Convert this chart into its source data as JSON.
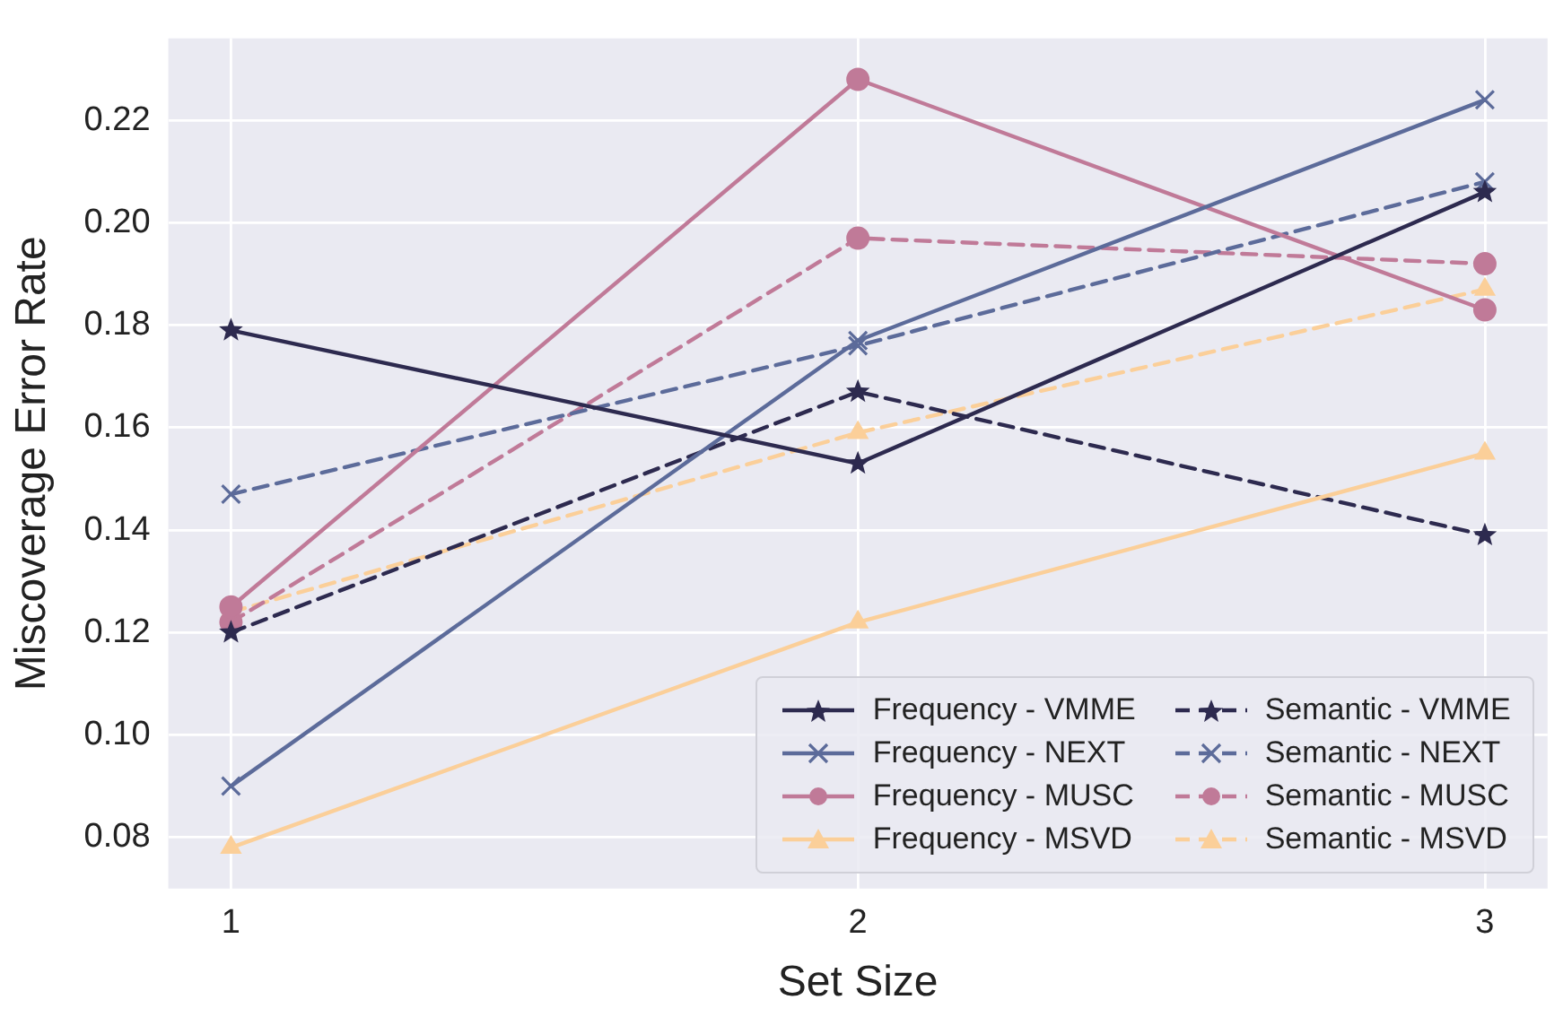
{
  "chart_data": {
    "type": "line",
    "xlabel": "Set Size",
    "ylabel": "Miscoverage Error Rate",
    "x": [
      1,
      2,
      3
    ],
    "xlim": [
      0.9,
      3.1
    ],
    "xticks": [
      1,
      2,
      3
    ],
    "ylim": [
      0.07,
      0.236
    ],
    "yticks": [
      {
        "value": 0.08,
        "label": "0.08"
      },
      {
        "value": 0.1,
        "label": "0.10"
      },
      {
        "value": 0.12,
        "label": "0.12"
      },
      {
        "value": 0.14,
        "label": "0.14"
      },
      {
        "value": 0.16,
        "label": "0.16"
      },
      {
        "value": 0.18,
        "label": "0.18"
      },
      {
        "value": 0.2,
        "label": "0.20"
      },
      {
        "value": 0.22,
        "label": "0.22"
      }
    ],
    "grid": true,
    "legend": "bottom right",
    "series": [
      {
        "name": "Frequency - VMME",
        "color": "#2d2a4f",
        "marker": "star",
        "line_style": "solid",
        "values": [
          0.179,
          0.153,
          0.206
        ]
      },
      {
        "name": "Frequency - NEXT",
        "color": "#5c6b9a",
        "marker": "cross",
        "line_style": "solid",
        "values": [
          0.09,
          0.177,
          0.224
        ]
      },
      {
        "name": "Frequency - MUSC",
        "color": "#c07a98",
        "marker": "circle",
        "line_style": "solid",
        "values": [
          0.125,
          0.228,
          0.183
        ]
      },
      {
        "name": "Frequency - MSVD",
        "color": "#fbcf99",
        "marker": "triangle",
        "line_style": "solid",
        "values": [
          0.078,
          0.122,
          0.155
        ]
      },
      {
        "name": "Semantic - VMME",
        "color": "#2d2a4f",
        "marker": "star",
        "line_style": "dashed",
        "values": [
          0.12,
          0.167,
          0.139
        ]
      },
      {
        "name": "Semantic - NEXT",
        "color": "#5c6b9a",
        "marker": "cross",
        "line_style": "dashed",
        "values": [
          0.147,
          0.176,
          0.208
        ]
      },
      {
        "name": "Semantic - MUSC",
        "color": "#c07a98",
        "marker": "circle",
        "line_style": "dashed",
        "values": [
          0.122,
          0.197,
          0.192
        ]
      },
      {
        "name": "Semantic - MSVD",
        "color": "#fbcf99",
        "marker": "triangle",
        "line_style": "dashed",
        "values": [
          0.124,
          0.159,
          0.187
        ]
      }
    ]
  }
}
